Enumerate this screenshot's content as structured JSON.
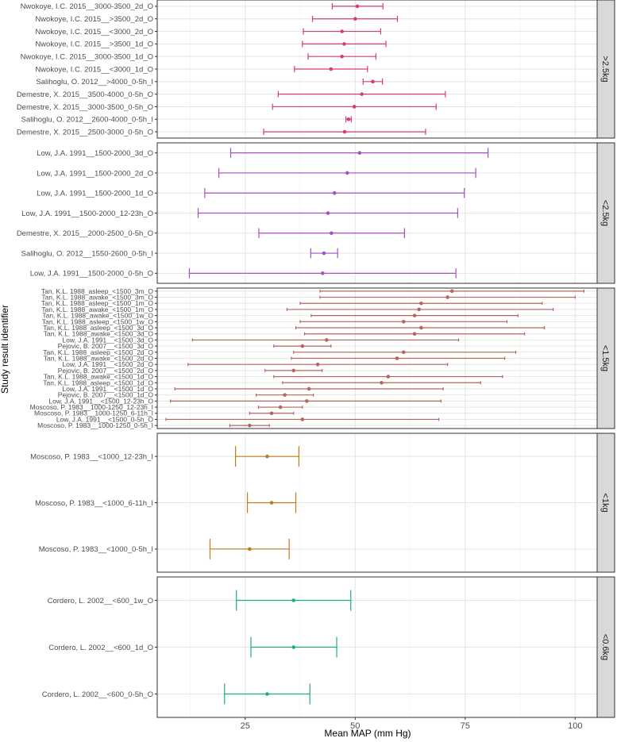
{
  "chart_data": {
    "type": "forest",
    "xlabel": "Mean MAP (mm Hg)",
    "ylabel": "Study result identifier",
    "xlim": [
      5,
      105
    ],
    "xticks": [
      25,
      50,
      75,
      100
    ],
    "grid": true,
    "panels": [
      {
        "strip": ">2.5kg",
        "color": "#d63a7f",
        "rows": [
          {
            "label": "Nwokoye, I.C. 2015__3000-3500_2d_O",
            "mean": 50.5,
            "lo": 44.8,
            "hi": 56.3
          },
          {
            "label": "Nwokoye, I.C. 2015__>3500_2d_O",
            "mean": 50.0,
            "lo": 40.3,
            "hi": 59.6
          },
          {
            "label": "Nwokoye, I.C. 2015__<3000_2d_O",
            "mean": 47.0,
            "lo": 38.2,
            "hi": 55.8
          },
          {
            "label": "Nwokoye, I.C. 2015__>3500_1d_O",
            "mean": 47.5,
            "lo": 38.0,
            "hi": 57.0
          },
          {
            "label": "Nwokoye, I.C. 2015__3000-3500_1d_O",
            "mean": 47.0,
            "lo": 39.3,
            "hi": 54.7
          },
          {
            "label": "Nwokoye, I.C. 2015__<3000_1d_O",
            "mean": 44.5,
            "lo": 36.2,
            "hi": 52.8
          },
          {
            "label": "Salihoglu, O. 2012__>4000_0-5h_I",
            "mean": 54.0,
            "lo": 51.8,
            "hi": 56.2
          },
          {
            "label": "Demestre, X. 2015__3500-4000_0-5h_O",
            "mean": 51.5,
            "lo": 32.5,
            "hi": 70.5
          },
          {
            "label": "Demestre, X. 2015__3000-3500_0-5h_O",
            "mean": 49.8,
            "lo": 31.2,
            "hi": 68.4
          },
          {
            "label": "Salihoglu, O. 2012__2600-4000_0-5h_I",
            "mean": 48.5,
            "lo": 47.9,
            "hi": 49.1
          },
          {
            "label": "Demestre, X. 2015__2500-3000_0-5h_O",
            "mean": 47.6,
            "lo": 29.2,
            "hi": 66.0
          }
        ]
      },
      {
        "strip": "<2.5kg",
        "color": "#a452c2",
        "rows": [
          {
            "label": "Low, J.A. 1991__1500-2000_3d_O",
            "mean": 51.0,
            "lo": 21.7,
            "hi": 80.2
          },
          {
            "label": "Low, J.A. 1991__1500-2000_2d_O",
            "mean": 48.2,
            "lo": 19.0,
            "hi": 77.4
          },
          {
            "label": "Low, J.A. 1991__1500-2000_1d_O",
            "mean": 45.3,
            "lo": 15.8,
            "hi": 74.8
          },
          {
            "label": "Low, J.A. 1991__1500-2000_12-23h_O",
            "mean": 43.8,
            "lo": 14.3,
            "hi": 73.3
          },
          {
            "label": "Demestre, X. 2015__2000-2500_0-5h_O",
            "mean": 44.6,
            "lo": 28.1,
            "hi": 61.2
          },
          {
            "label": "Salihoglu, O. 2012__1550-2600_0-5h_I",
            "mean": 42.9,
            "lo": 39.9,
            "hi": 46.0
          },
          {
            "label": "Low, J.A. 1991__1500-2000_0-5h_O",
            "mean": 42.6,
            "lo": 12.3,
            "hi": 72.9
          }
        ]
      },
      {
        "strip": "<1.5kg",
        "color": "#b5675d",
        "rows": [
          {
            "label": "Tan, K.L. 1988_asleep_<1500_3m_O",
            "mean": 72.0,
            "lo": 42.0,
            "hi": 102.0
          },
          {
            "label": "Tan, K.L. 1988_awake_<1500_3m_O",
            "mean": 71.0,
            "lo": 42.0,
            "hi": 100.0
          },
          {
            "label": "Tan, K.L. 1988_asleep_<1500_1m_O",
            "mean": 65.0,
            "lo": 37.5,
            "hi": 92.5
          },
          {
            "label": "Tan, K.L. 1988_awake_<1500_1m_O",
            "mean": 64.5,
            "lo": 34.5,
            "hi": 95.0
          },
          {
            "label": "Tan, K.L. 1988_awake_<1500_1w_O",
            "mean": 63.5,
            "lo": 40.0,
            "hi": 87.0
          },
          {
            "label": "Tan, K.L. 1988_asleep_<1500_1w_O",
            "mean": 61.0,
            "lo": 37.5,
            "hi": 84.5
          },
          {
            "label": "Tan, K.L. 1988_asleep_<1500_3d_O",
            "mean": 65.0,
            "lo": 36.5,
            "hi": 93.0
          },
          {
            "label": "Tan, K.L. 1988_awake_<1500_3d_O",
            "mean": 63.5,
            "lo": 38.5,
            "hi": 88.5
          },
          {
            "label": "Low, J.A. 1991__<1500_3d_O",
            "mean": 43.5,
            "lo": 13.0,
            "hi": 73.5
          },
          {
            "label": "Pejovic, B. 2007__<1500_3d_O",
            "mean": 38.0,
            "lo": 31.5,
            "hi": 44.5
          },
          {
            "label": "Tan, K.L. 1988_asleep_<1500_2d_O",
            "mean": 61.0,
            "lo": 36.0,
            "hi": 86.5
          },
          {
            "label": "Tan, K.L. 1988_awake_<1500_2d_O",
            "mean": 59.5,
            "lo": 35.5,
            "hi": 84.0
          },
          {
            "label": "Low, J.A. 1991__<1500_2d_O",
            "mean": 41.5,
            "lo": 12.0,
            "hi": 71.0
          },
          {
            "label": "Pejovic, B. 2007__<1500_2d_O",
            "mean": 36.0,
            "lo": 29.5,
            "hi": 42.5
          },
          {
            "label": "Tan, K.L. 1988_awake_<1500_1d_O",
            "mean": 57.5,
            "lo": 31.5,
            "hi": 83.5
          },
          {
            "label": "Tan, K.L. 1988_asleep_<1500_1d_O",
            "mean": 56.0,
            "lo": 33.5,
            "hi": 78.5
          },
          {
            "label": "Low, J.A. 1991__<1500_1d_O",
            "mean": 39.5,
            "lo": 9.0,
            "hi": 70.0
          },
          {
            "label": "Pejovic, B. 2007__<1500_1d_O",
            "mean": 34.0,
            "lo": 27.5,
            "hi": 40.5
          },
          {
            "label": "Low, J.A. 1991__<1500_12-23h_O",
            "mean": 39.0,
            "lo": 8.0,
            "hi": 69.5
          },
          {
            "label": "Moscoso, P. 1983__1000-1250_12-23h_I",
            "mean": 33.0,
            "lo": 28.0,
            "hi": 38.0
          },
          {
            "label": "Moscoso, P. 1983__1000-1250_6-11h_I",
            "mean": 31.0,
            "lo": 26.0,
            "hi": 36.0
          },
          {
            "label": "Low, J.A. 1991__<1500_0-5h_O",
            "mean": 38.0,
            "lo": 7.0,
            "hi": 69.0
          },
          {
            "label": "Moscoso, P. 1983__1000-1250_0-5h_I",
            "mean": 26.0,
            "lo": 21.5,
            "hi": 30.5
          }
        ]
      },
      {
        "strip": "<1kg",
        "color": "#c27a1f",
        "rows": [
          {
            "label": "Moscoso, P. 1983__<1000_12-23h_I",
            "mean": 30.0,
            "lo": 22.8,
            "hi": 37.2
          },
          {
            "label": "Moscoso, P. 1983__<1000_6-11h_I",
            "mean": 31.0,
            "lo": 25.5,
            "hi": 36.5
          },
          {
            "label": "Moscoso, P. 1983__<1000_0-5h_I",
            "mean": 26.0,
            "lo": 17.0,
            "hi": 35.0
          }
        ]
      },
      {
        "strip": "<0.6kg",
        "color": "#1fab89",
        "rows": [
          {
            "label": "Cordero, L. 2002__<600_1w_O",
            "mean": 36.0,
            "lo": 23.0,
            "hi": 49.0
          },
          {
            "label": "Cordero, L. 2002__<600_1d_O",
            "mean": 36.0,
            "lo": 26.3,
            "hi": 45.8
          },
          {
            "label": "Cordero, L. 2002__<600_0-5h_O",
            "mean": 30.0,
            "lo": 20.3,
            "hi": 39.7
          }
        ]
      }
    ]
  }
}
